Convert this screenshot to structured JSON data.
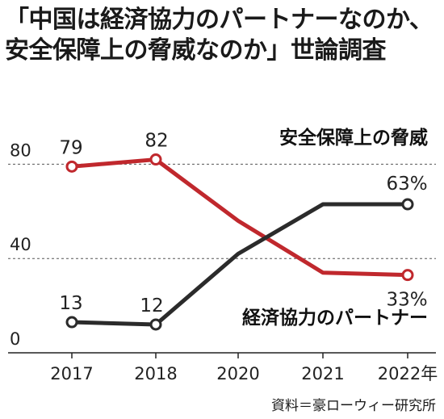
{
  "title_lines": [
    "「中国は経済協力のパートナーなのか、",
    "安全保障上の脅威なのか」世論調査"
  ],
  "source": "資料＝豪ローウィー研究所",
  "chart_data": {
    "type": "line",
    "x": [
      "2017",
      "2018",
      "2020",
      "2021",
      "2022年"
    ],
    "ylim": [
      0,
      100
    ],
    "yticks": [
      0,
      40,
      80
    ],
    "dashed_gridlines": [
      40,
      80
    ],
    "series": [
      {
        "name": "安全保障上の脅威",
        "color": "#c0282d",
        "values": [
          79,
          82,
          56,
          34,
          33
        ],
        "point_labels": [
          "79",
          "82",
          "",
          "",
          "33%"
        ]
      },
      {
        "name": "経済協力のパートナー",
        "color": "#2b2b2b",
        "values": [
          13,
          12,
          42,
          63,
          63
        ],
        "point_labels": [
          "13",
          "12",
          "",
          "",
          "63%"
        ]
      }
    ]
  }
}
